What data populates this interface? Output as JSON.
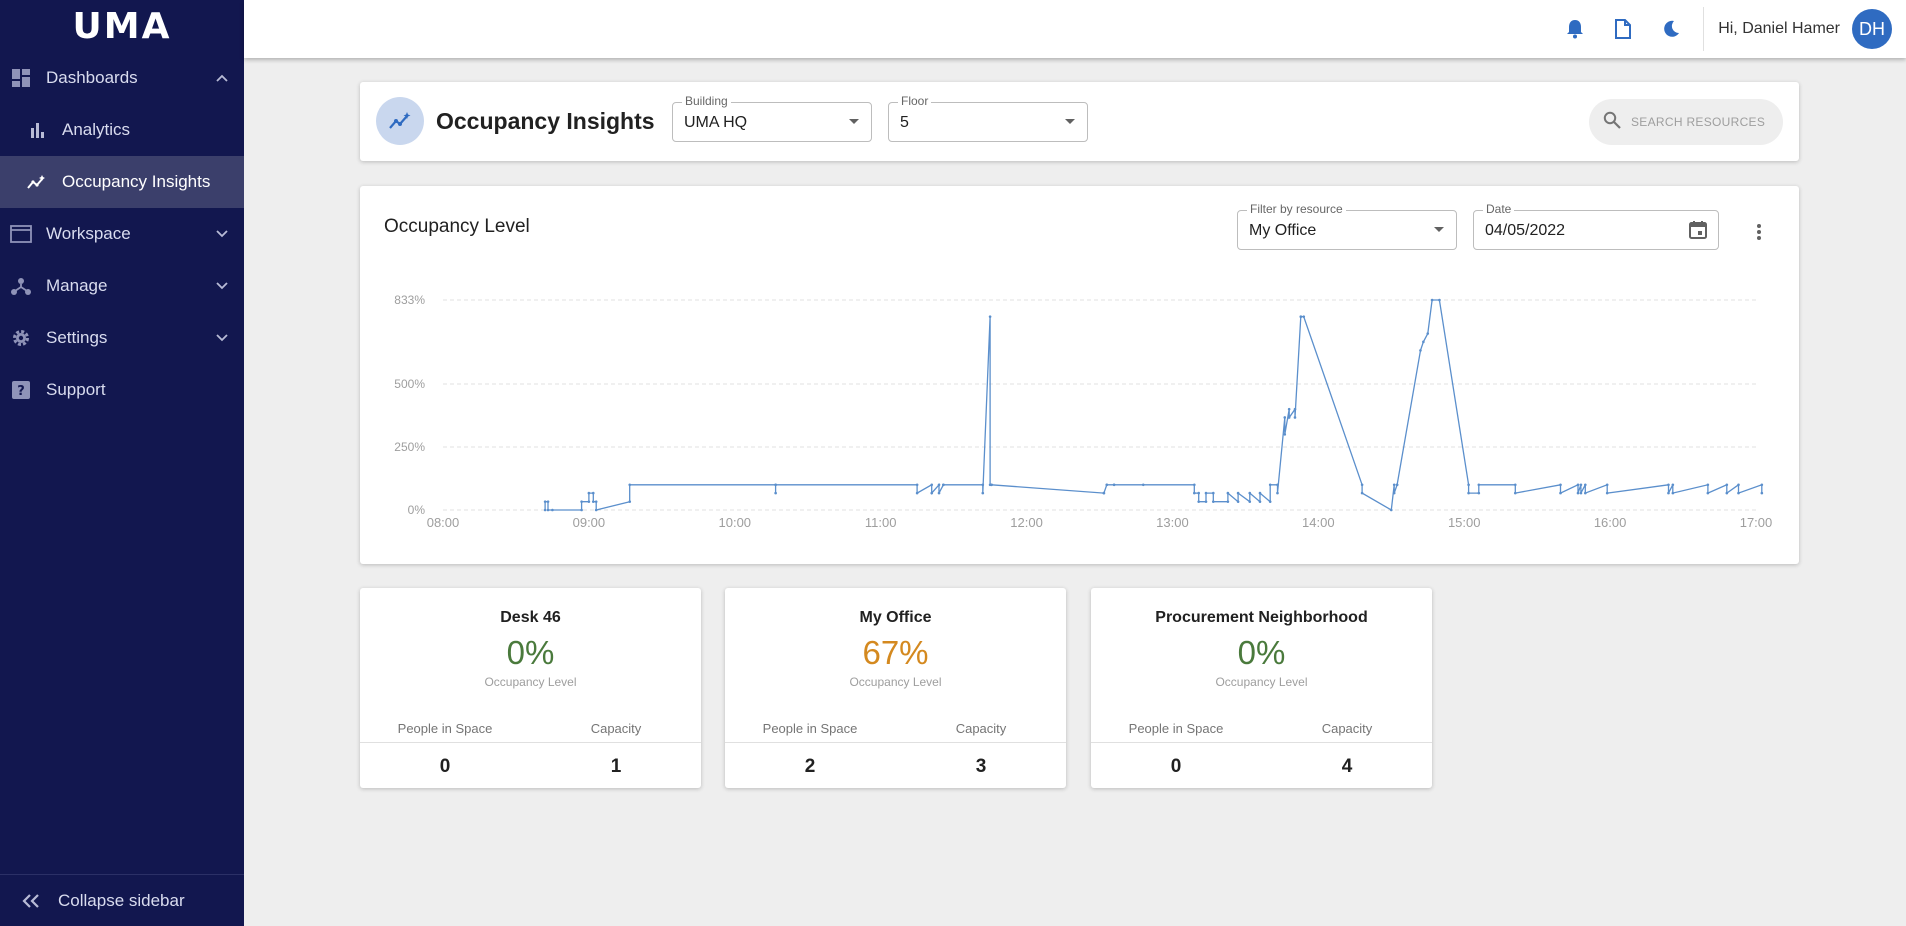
{
  "app": {
    "logo": "UMA"
  },
  "sidebar": {
    "items": [
      {
        "label": "Dashboards",
        "icon": "dashboard-icon",
        "expanded": true
      },
      {
        "label": "Analytics",
        "icon": "bar-chart-icon"
      },
      {
        "label": "Occupancy Insights",
        "icon": "insights-icon",
        "active": true
      },
      {
        "label": "Workspace",
        "icon": "window-icon"
      },
      {
        "label": "Manage",
        "icon": "hub-icon"
      },
      {
        "label": "Settings",
        "icon": "gear-icon"
      },
      {
        "label": "Support",
        "icon": "help-icon"
      }
    ],
    "collapse_label": "Collapse sidebar"
  },
  "topbar": {
    "greeting": "Hi, Daniel Hamer",
    "avatar_initials": "DH",
    "icons": [
      "bell-icon",
      "document-icon",
      "moon-icon"
    ]
  },
  "header": {
    "title": "Occupancy Insights",
    "building": {
      "label": "Building",
      "value": "UMA HQ"
    },
    "floor": {
      "label": "Floor",
      "value": "5"
    },
    "search": {
      "placeholder": "SEARCH RESOURCES"
    }
  },
  "chart": {
    "title": "Occupancy Level",
    "resource_filter": {
      "label": "Filter by resource",
      "value": "My Office"
    },
    "date": {
      "label": "Date",
      "value": "04/05/2022"
    }
  },
  "chart_data": {
    "type": "line",
    "title": "Occupancy Level",
    "xlabel": "",
    "ylabel": "",
    "x_ticks": [
      "08:00",
      "09:00",
      "10:00",
      "11:00",
      "12:00",
      "13:00",
      "14:00",
      "15:00",
      "16:00",
      "17:00"
    ],
    "y_ticks": [
      "0%",
      "250%",
      "500%",
      "833%"
    ],
    "xlim": [
      8.0,
      17.0
    ],
    "ylim": [
      0,
      833
    ],
    "grid": true,
    "line_color": "#5b8fcc",
    "series": [
      {
        "x": [
          8.7,
          8.7,
          8.72,
          8.72,
          8.75,
          8.95,
          8.95,
          9.0,
          9.0,
          9.03,
          9.03,
          9.05,
          9.05,
          9.28,
          9.28,
          10.28,
          10.28,
          10.28,
          11.25,
          11.25,
          11.35,
          11.35,
          11.4,
          11.4,
          11.43,
          11.43,
          11.7,
          11.7,
          11.75,
          11.75,
          11.76,
          11.76,
          12.53,
          12.53,
          12.55,
          12.55,
          12.6,
          12.6,
          12.8,
          13.15,
          13.15,
          13.18,
          13.18,
          13.23,
          13.23,
          13.28,
          13.28,
          13.38,
          13.38,
          13.45,
          13.45,
          13.53,
          13.53,
          13.6,
          13.6,
          13.67,
          13.67,
          13.72,
          13.72,
          13.77,
          13.77,
          13.8,
          13.8,
          13.84,
          13.84,
          13.88,
          13.88,
          13.9,
          14.3,
          14.3,
          14.5,
          14.52,
          14.52,
          14.54,
          14.54,
          14.7,
          14.72,
          14.75,
          14.78,
          14.83,
          15.03,
          15.03,
          15.1,
          15.1,
          15.35,
          15.35,
          15.66,
          15.66,
          15.78,
          15.78,
          15.8,
          15.8,
          15.83,
          15.83,
          15.98,
          15.98,
          16.4,
          16.4,
          16.43,
          16.43,
          16.67,
          16.67,
          16.8,
          16.8,
          16.88,
          16.88,
          17.04,
          17.04
        ],
        "y": [
          0,
          33,
          33,
          0,
          0,
          0,
          33,
          33,
          67,
          67,
          33,
          33,
          0,
          33,
          100,
          100,
          67,
          100,
          100,
          67,
          100,
          67,
          100,
          67,
          100,
          100,
          100,
          67,
          767,
          100,
          100,
          100,
          67,
          67,
          100,
          100,
          100,
          100,
          100,
          100,
          67,
          67,
          33,
          33,
          67,
          67,
          33,
          33,
          67,
          33,
          67,
          33,
          67,
          33,
          67,
          33,
          100,
          100,
          67,
          367,
          300,
          400,
          367,
          400,
          367,
          767,
          767,
          767,
          100,
          67,
          0,
          100,
          67,
          100,
          100,
          633,
          667,
          700,
          833,
          833,
          100,
          67,
          67,
          100,
          100,
          67,
          100,
          67,
          100,
          67,
          100,
          67,
          100,
          67,
          100,
          67,
          100,
          67,
          100,
          67,
          100,
          67,
          100,
          67,
          100,
          67,
          100,
          67
        ]
      }
    ]
  },
  "stats": [
    {
      "name": "Desk 46",
      "value": "0%",
      "value_color": "#4a7a3c",
      "sub": "Occupancy Level",
      "people_label": "People in Space",
      "capacity_label": "Capacity",
      "people": "0",
      "capacity": "1"
    },
    {
      "name": "My Office",
      "value": "67%",
      "value_color": "#d4891f",
      "sub": "Occupancy Level",
      "people_label": "People in Space",
      "capacity_label": "Capacity",
      "people": "2",
      "capacity": "3"
    },
    {
      "name": "Procurement Neighborhood",
      "value": "0%",
      "value_color": "#4a7a3c",
      "sub": "Occupancy Level",
      "people_label": "People in Space",
      "capacity_label": "Capacity",
      "people": "0",
      "capacity": "4"
    }
  ]
}
